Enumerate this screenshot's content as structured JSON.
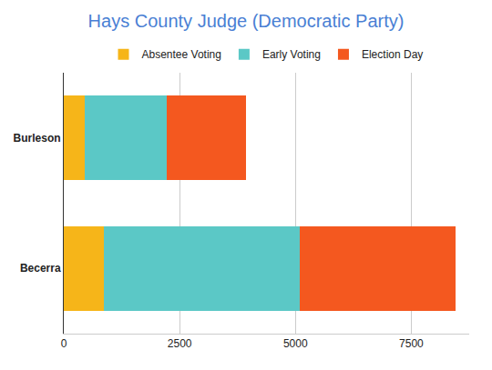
{
  "chart_data": {
    "type": "bar",
    "title": "Hays County Judge (Democratic Party)",
    "orientation": "horizontal",
    "stacked": true,
    "categories": [
      "Burleson",
      "Becerra"
    ],
    "series": [
      {
        "name": "Absentee Voting",
        "color": "#f6b519",
        "values": [
          450,
          870
        ]
      },
      {
        "name": "Early Voting",
        "color": "#5bc8c6",
        "values": [
          1780,
          4230
        ]
      },
      {
        "name": "Election Day",
        "color": "#f4581f",
        "values": [
          1700,
          3350
        ]
      }
    ],
    "xlim": [
      0,
      8750
    ],
    "xticks": [
      0,
      2500,
      5000,
      7500
    ],
    "grid": true,
    "legend": "top"
  }
}
